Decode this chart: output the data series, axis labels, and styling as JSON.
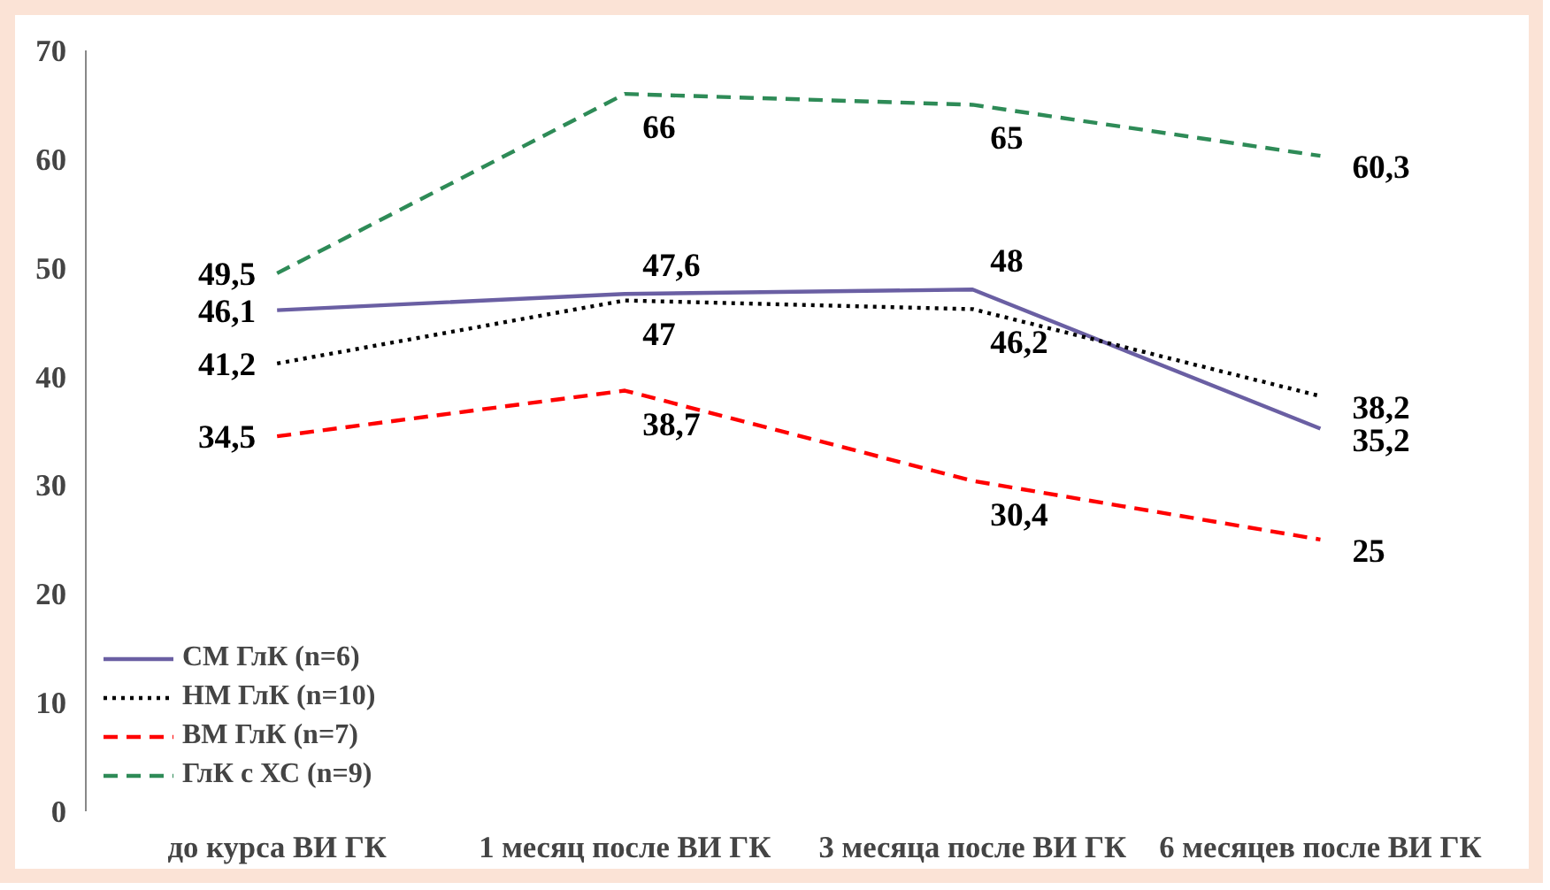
{
  "chart_data": {
    "type": "line",
    "categories": [
      "до курса ВИ ГК",
      "1 месяц после ВИ ГК",
      "3 месяца после ВИ ГК",
      "6 месяцев после ВИ ГК"
    ],
    "ylim": [
      0,
      70
    ],
    "yticks": [
      0,
      10,
      20,
      30,
      40,
      50,
      60,
      70
    ],
    "grid": false,
    "legend": "bottom left",
    "marker": "none",
    "series": [
      {
        "name": "СМ ГлК (n=6)",
        "color": "#6a5fa3",
        "line_style": "solid",
        "values": [
          46.1,
          47.6,
          48,
          35.2
        ],
        "value_labels": [
          "46,1",
          "47,6",
          "48",
          "35,2"
        ]
      },
      {
        "name": "НМ ГлК (n=10)",
        "color": "#000000",
        "line_style": "dotted",
        "values": [
          41.2,
          47,
          46.2,
          38.2
        ],
        "value_labels": [
          "41,2",
          "47",
          "46,2",
          "38,2"
        ]
      },
      {
        "name": "ВМ ГлК (n=7)",
        "color": "#ff0000",
        "line_style": "dashed",
        "values": [
          34.5,
          38.7,
          30.4,
          25
        ],
        "value_labels": [
          "34,5",
          "38,7",
          "30,4",
          "25"
        ]
      },
      {
        "name": "ГлК с ХС (n=9)",
        "color": "#2e8b57",
        "line_style": "dashed",
        "values": [
          49.5,
          66,
          65,
          60.3
        ],
        "value_labels": [
          "49,5",
          "66",
          "65",
          "60,3"
        ]
      }
    ]
  }
}
